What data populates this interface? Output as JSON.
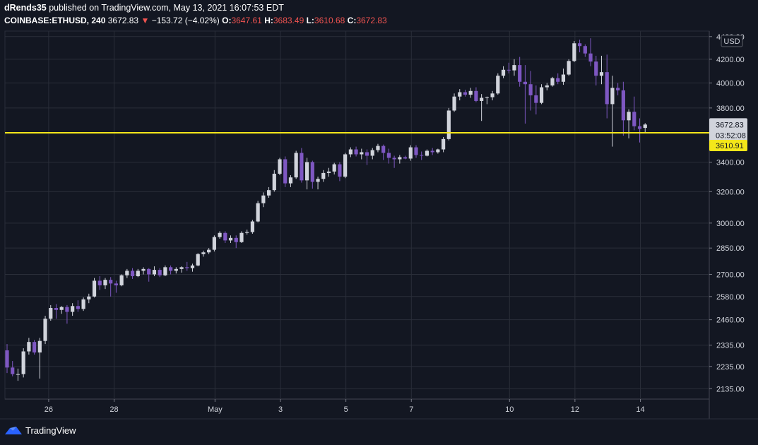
{
  "header": {
    "author": "dRends35",
    "published_text": "published on TradingView.com, May 13, 2021 16:07:53 EDT",
    "symbol": "COINBASE:ETHUSD, 240",
    "last": "3672.83",
    "arrow": "▼",
    "change": "−153.72 (−4.02%)",
    "o_label": "O:",
    "o": "3647.61",
    "h_label": "H:",
    "h": "3683.49",
    "l_label": "L:",
    "l": "3610.68",
    "c_label": "C:",
    "c": "3672.83"
  },
  "footer": {
    "brand": "TradingView",
    "logo_icon": "tradingview-logo-icon"
  },
  "colors": {
    "background": "#131722",
    "grid": "#2a2e39",
    "up": "#d1d4dc",
    "down": "#7e57c2",
    "hline": "#f4e71a",
    "axis_text": "#d1d4dc",
    "red": "#ef5350"
  },
  "chart_data": {
    "type": "candlestick",
    "currency_label": "USD",
    "x_ticks": [
      "26",
      "28",
      "May",
      "3",
      "5",
      "7",
      "10",
      "12",
      "14"
    ],
    "y_ticks": [
      "4400.00",
      "4200.00",
      "4000.00",
      "3800.00",
      "3400.00",
      "3200.00",
      "3000.00",
      "2850.00",
      "2700.00",
      "2580.00",
      "2460.00",
      "2335.00",
      "2235.00",
      "2135.00"
    ],
    "y_scale": "log",
    "price_badge": {
      "value": "3672.83",
      "countdown": "03:52:08"
    },
    "hline": {
      "value": 3610.91,
      "label": "3610.91"
    },
    "grid": true,
    "candles": [
      {
        "o": 2310,
        "h": 2340,
        "l": 2205,
        "c": 2230
      },
      {
        "o": 2230,
        "h": 2260,
        "l": 2190,
        "c": 2200
      },
      {
        "o": 2200,
        "h": 2225,
        "l": 2170,
        "c": 2200
      },
      {
        "o": 2200,
        "h": 2320,
        "l": 2185,
        "c": 2305
      },
      {
        "o": 2305,
        "h": 2370,
        "l": 2290,
        "c": 2350
      },
      {
        "o": 2350,
        "h": 2360,
        "l": 2290,
        "c": 2300
      },
      {
        "o": 2300,
        "h": 2370,
        "l": 2180,
        "c": 2355
      },
      {
        "o": 2355,
        "h": 2480,
        "l": 2340,
        "c": 2465
      },
      {
        "o": 2465,
        "h": 2535,
        "l": 2455,
        "c": 2520
      },
      {
        "o": 2520,
        "h": 2540,
        "l": 2465,
        "c": 2510
      },
      {
        "o": 2510,
        "h": 2530,
        "l": 2490,
        "c": 2525
      },
      {
        "o": 2525,
        "h": 2535,
        "l": 2440,
        "c": 2500
      },
      {
        "o": 2500,
        "h": 2545,
        "l": 2480,
        "c": 2530
      },
      {
        "o": 2530,
        "h": 2560,
        "l": 2500,
        "c": 2515
      },
      {
        "o": 2515,
        "h": 2575,
        "l": 2505,
        "c": 2565
      },
      {
        "o": 2565,
        "h": 2595,
        "l": 2545,
        "c": 2580
      },
      {
        "o": 2580,
        "h": 2680,
        "l": 2575,
        "c": 2665
      },
      {
        "o": 2665,
        "h": 2690,
        "l": 2615,
        "c": 2640
      },
      {
        "o": 2640,
        "h": 2680,
        "l": 2620,
        "c": 2670
      },
      {
        "o": 2670,
        "h": 2685,
        "l": 2580,
        "c": 2650
      },
      {
        "o": 2650,
        "h": 2665,
        "l": 2600,
        "c": 2640
      },
      {
        "o": 2640,
        "h": 2700,
        "l": 2635,
        "c": 2695
      },
      {
        "o": 2695,
        "h": 2730,
        "l": 2680,
        "c": 2720
      },
      {
        "o": 2720,
        "h": 2735,
        "l": 2675,
        "c": 2690
      },
      {
        "o": 2690,
        "h": 2730,
        "l": 2685,
        "c": 2720
      },
      {
        "o": 2720,
        "h": 2740,
        "l": 2700,
        "c": 2730
      },
      {
        "o": 2730,
        "h": 2735,
        "l": 2660,
        "c": 2700
      },
      {
        "o": 2700,
        "h": 2745,
        "l": 2690,
        "c": 2725
      },
      {
        "o": 2725,
        "h": 2735,
        "l": 2685,
        "c": 2695
      },
      {
        "o": 2695,
        "h": 2750,
        "l": 2690,
        "c": 2740
      },
      {
        "o": 2740,
        "h": 2750,
        "l": 2700,
        "c": 2720
      },
      {
        "o": 2720,
        "h": 2740,
        "l": 2705,
        "c": 2730
      },
      {
        "o": 2730,
        "h": 2745,
        "l": 2710,
        "c": 2740
      },
      {
        "o": 2740,
        "h": 2770,
        "l": 2720,
        "c": 2735
      },
      {
        "o": 2735,
        "h": 2760,
        "l": 2715,
        "c": 2750
      },
      {
        "o": 2750,
        "h": 2820,
        "l": 2745,
        "c": 2815
      },
      {
        "o": 2815,
        "h": 2835,
        "l": 2800,
        "c": 2825
      },
      {
        "o": 2825,
        "h": 2850,
        "l": 2815,
        "c": 2840
      },
      {
        "o": 2840,
        "h": 2925,
        "l": 2830,
        "c": 2915
      },
      {
        "o": 2915,
        "h": 2950,
        "l": 2905,
        "c": 2940
      },
      {
        "o": 2940,
        "h": 2950,
        "l": 2880,
        "c": 2895
      },
      {
        "o": 2895,
        "h": 2925,
        "l": 2880,
        "c": 2910
      },
      {
        "o": 2910,
        "h": 2925,
        "l": 2850,
        "c": 2885
      },
      {
        "o": 2885,
        "h": 2950,
        "l": 2880,
        "c": 2940
      },
      {
        "o": 2940,
        "h": 2960,
        "l": 2930,
        "c": 2945
      },
      {
        "o": 2945,
        "h": 3020,
        "l": 2935,
        "c": 3010
      },
      {
        "o": 3010,
        "h": 3140,
        "l": 3005,
        "c": 3125
      },
      {
        "o": 3125,
        "h": 3195,
        "l": 3100,
        "c": 3175
      },
      {
        "o": 3175,
        "h": 3230,
        "l": 3160,
        "c": 3210
      },
      {
        "o": 3210,
        "h": 3345,
        "l": 3200,
        "c": 3320
      },
      {
        "o": 3320,
        "h": 3430,
        "l": 3310,
        "c": 3420
      },
      {
        "o": 3420,
        "h": 3440,
        "l": 3230,
        "c": 3255
      },
      {
        "o": 3255,
        "h": 3310,
        "l": 3230,
        "c": 3295
      },
      {
        "o": 3295,
        "h": 3480,
        "l": 3285,
        "c": 3465
      },
      {
        "o": 3465,
        "h": 3500,
        "l": 3260,
        "c": 3275
      },
      {
        "o": 3275,
        "h": 3430,
        "l": 3215,
        "c": 3400
      },
      {
        "o": 3400,
        "h": 3410,
        "l": 3220,
        "c": 3265
      },
      {
        "o": 3265,
        "h": 3300,
        "l": 3215,
        "c": 3285
      },
      {
        "o": 3285,
        "h": 3345,
        "l": 3265,
        "c": 3325
      },
      {
        "o": 3325,
        "h": 3360,
        "l": 3300,
        "c": 3335
      },
      {
        "o": 3335,
        "h": 3395,
        "l": 3315,
        "c": 3385
      },
      {
        "o": 3385,
        "h": 3400,
        "l": 3270,
        "c": 3300
      },
      {
        "o": 3300,
        "h": 3465,
        "l": 3290,
        "c": 3455
      },
      {
        "o": 3455,
        "h": 3505,
        "l": 3435,
        "c": 3490
      },
      {
        "o": 3490,
        "h": 3510,
        "l": 3440,
        "c": 3455
      },
      {
        "o": 3455,
        "h": 3495,
        "l": 3420,
        "c": 3470
      },
      {
        "o": 3470,
        "h": 3490,
        "l": 3380,
        "c": 3445
      },
      {
        "o": 3445,
        "h": 3500,
        "l": 3420,
        "c": 3485
      },
      {
        "o": 3485,
        "h": 3530,
        "l": 3470,
        "c": 3515
      },
      {
        "o": 3515,
        "h": 3525,
        "l": 3415,
        "c": 3465
      },
      {
        "o": 3465,
        "h": 3495,
        "l": 3390,
        "c": 3430
      },
      {
        "o": 3430,
        "h": 3445,
        "l": 3360,
        "c": 3420
      },
      {
        "o": 3420,
        "h": 3450,
        "l": 3390,
        "c": 3435
      },
      {
        "o": 3435,
        "h": 3445,
        "l": 3420,
        "c": 3425
      },
      {
        "o": 3425,
        "h": 3520,
        "l": 3410,
        "c": 3505
      },
      {
        "o": 3505,
        "h": 3520,
        "l": 3430,
        "c": 3450
      },
      {
        "o": 3450,
        "h": 3475,
        "l": 3415,
        "c": 3445
      },
      {
        "o": 3445,
        "h": 3490,
        "l": 3440,
        "c": 3480
      },
      {
        "o": 3480,
        "h": 3500,
        "l": 3450,
        "c": 3470
      },
      {
        "o": 3470,
        "h": 3495,
        "l": 3460,
        "c": 3490
      },
      {
        "o": 3490,
        "h": 3580,
        "l": 3470,
        "c": 3565
      },
      {
        "o": 3565,
        "h": 3800,
        "l": 3555,
        "c": 3780
      },
      {
        "o": 3780,
        "h": 3915,
        "l": 3770,
        "c": 3890
      },
      {
        "o": 3890,
        "h": 3950,
        "l": 3860,
        "c": 3925
      },
      {
        "o": 3925,
        "h": 3945,
        "l": 3890,
        "c": 3905
      },
      {
        "o": 3905,
        "h": 3960,
        "l": 3880,
        "c": 3935
      },
      {
        "o": 3935,
        "h": 3965,
        "l": 3845,
        "c": 3855
      },
      {
        "o": 3855,
        "h": 3910,
        "l": 3700,
        "c": 3880
      },
      {
        "o": 3880,
        "h": 3890,
        "l": 3830,
        "c": 3885
      },
      {
        "o": 3885,
        "h": 3935,
        "l": 3860,
        "c": 3915
      },
      {
        "o": 3915,
        "h": 4080,
        "l": 3905,
        "c": 4060
      },
      {
        "o": 4060,
        "h": 4140,
        "l": 4040,
        "c": 4110
      },
      {
        "o": 4110,
        "h": 4170,
        "l": 4080,
        "c": 4105
      },
      {
        "o": 4105,
        "h": 4200,
        "l": 4060,
        "c": 4150
      },
      {
        "o": 4150,
        "h": 4220,
        "l": 3970,
        "c": 4010
      },
      {
        "o": 4010,
        "h": 4150,
        "l": 3680,
        "c": 3990
      },
      {
        "o": 3990,
        "h": 4100,
        "l": 3780,
        "c": 3900
      },
      {
        "o": 3900,
        "h": 3980,
        "l": 3750,
        "c": 3840
      },
      {
        "o": 3840,
        "h": 3990,
        "l": 3830,
        "c": 3965
      },
      {
        "o": 3965,
        "h": 4000,
        "l": 3940,
        "c": 3980
      },
      {
        "o": 3980,
        "h": 4050,
        "l": 3970,
        "c": 4040
      },
      {
        "o": 4040,
        "h": 4080,
        "l": 3990,
        "c": 4010
      },
      {
        "o": 4010,
        "h": 4120,
        "l": 3985,
        "c": 4070
      },
      {
        "o": 4070,
        "h": 4200,
        "l": 4060,
        "c": 4185
      },
      {
        "o": 4185,
        "h": 4360,
        "l": 4175,
        "c": 4340
      },
      {
        "o": 4340,
        "h": 4372,
        "l": 4260,
        "c": 4315
      },
      {
        "o": 4315,
        "h": 4330,
        "l": 4220,
        "c": 4250
      },
      {
        "o": 4250,
        "h": 4385,
        "l": 4140,
        "c": 4180
      },
      {
        "o": 4180,
        "h": 4230,
        "l": 3980,
        "c": 4060
      },
      {
        "o": 4060,
        "h": 4230,
        "l": 3990,
        "c": 4090
      },
      {
        "o": 4090,
        "h": 4240,
        "l": 3720,
        "c": 3830
      },
      {
        "o": 3830,
        "h": 4060,
        "l": 3510,
        "c": 3960
      },
      {
        "o": 3960,
        "h": 4000,
        "l": 3900,
        "c": 3940
      },
      {
        "o": 3940,
        "h": 4010,
        "l": 3590,
        "c": 3705
      },
      {
        "o": 3705,
        "h": 3790,
        "l": 3570,
        "c": 3770
      },
      {
        "o": 3770,
        "h": 3890,
        "l": 3630,
        "c": 3660
      },
      {
        "o": 3660,
        "h": 3720,
        "l": 3540,
        "c": 3640
      },
      {
        "o": 3647.61,
        "h": 3683.49,
        "l": 3610.68,
        "c": 3672.83
      }
    ]
  }
}
